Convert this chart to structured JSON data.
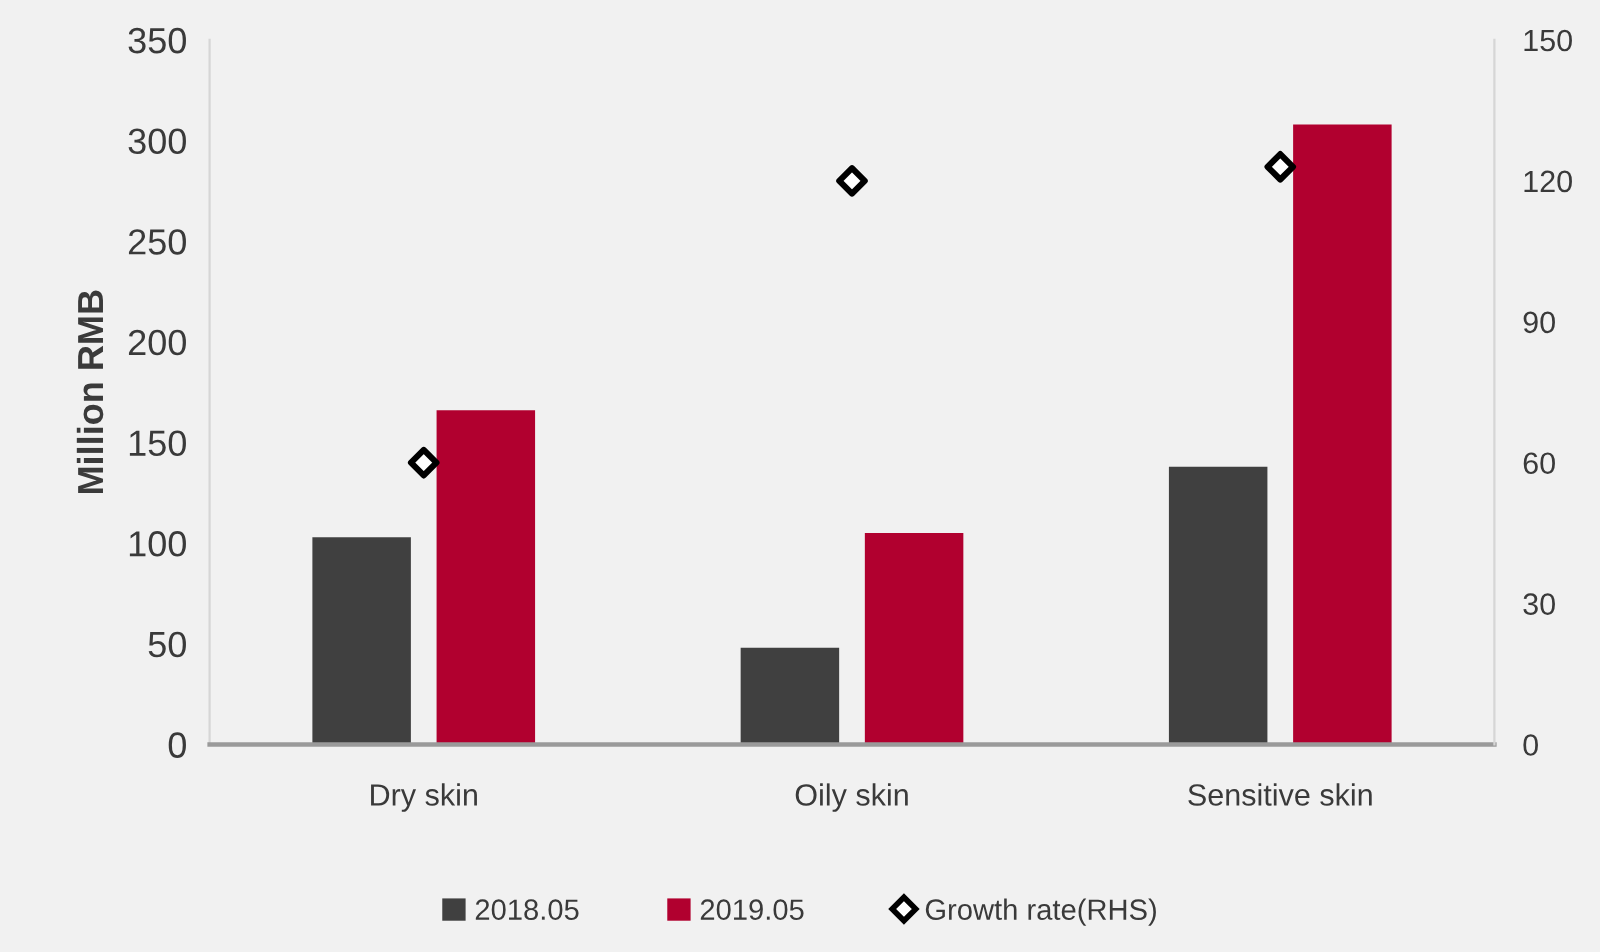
{
  "chart_data": {
    "type": "bar",
    "categories": [
      "Dry skin",
      "Oily skin",
      "Sensitive skin"
    ],
    "ylabel": "Million RMB",
    "series": [
      {
        "name": "2018.05",
        "color": "#404040",
        "values": [
          103,
          48,
          138
        ]
      },
      {
        "name": "2019.05",
        "color": "#b1002f",
        "values": [
          166,
          105,
          308
        ]
      },
      {
        "name": "Growth rate(RHS)",
        "type": "scatter",
        "axis": "y2",
        "color": "#000000",
        "marker": "diamond",
        "values": [
          60,
          120,
          123
        ]
      }
    ],
    "ylim": [
      0,
      350
    ],
    "yticks": [
      0,
      50,
      100,
      150,
      200,
      250,
      300,
      350
    ],
    "y2lim": [
      0,
      150
    ],
    "y2ticks": [
      0,
      30,
      60,
      90,
      120,
      150
    ],
    "legend": "bottom",
    "grid": false
  }
}
